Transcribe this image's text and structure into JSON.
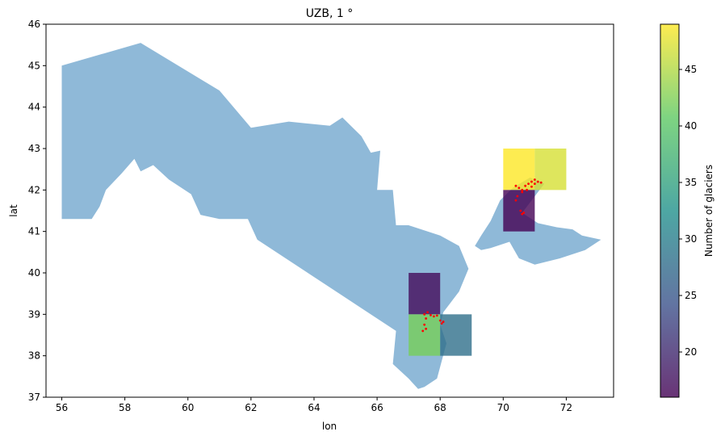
{
  "chart_data": {
    "type": "heatmap",
    "title": "UZB, 1 °",
    "xlabel": "lon",
    "ylabel": "lat",
    "xlim": [
      55.5,
      73.5
    ],
    "ylim": [
      37,
      46
    ],
    "xticks": [
      56,
      58,
      60,
      62,
      64,
      66,
      68,
      70,
      72
    ],
    "yticks": [
      37,
      38,
      39,
      40,
      41,
      42,
      43,
      44,
      45,
      46
    ],
    "grid": false,
    "country_fill": "#8fb9d8",
    "glacier_color": "#ff0000",
    "cell_opacity": 0.8,
    "colorbar": {
      "label": "Number of glaciers",
      "vmin": 16,
      "vmax": 49,
      "ticks": [
        20,
        25,
        30,
        35,
        40,
        45
      ],
      "colormap": "viridis"
    },
    "cells": [
      {
        "lon": 70,
        "lat": 42,
        "count": 49
      },
      {
        "lon": 71,
        "lat": 42,
        "count": 47
      },
      {
        "lon": 70,
        "lat": 41,
        "count": 16
      },
      {
        "lon": 67,
        "lat": 39,
        "count": 17
      },
      {
        "lon": 67,
        "lat": 38,
        "count": 42
      },
      {
        "lon": 68,
        "lat": 38,
        "count": 28
      }
    ],
    "country_outline": [
      [
        56.0,
        45.0
      ],
      [
        58.5,
        45.55
      ],
      [
        61.0,
        44.4
      ],
      [
        62.0,
        43.5
      ],
      [
        63.2,
        43.65
      ],
      [
        64.5,
        43.55
      ],
      [
        64.9,
        43.75
      ],
      [
        65.5,
        43.3
      ],
      [
        65.8,
        42.9
      ],
      [
        66.1,
        42.95
      ],
      [
        66.0,
        42.0
      ],
      [
        66.5,
        42.0
      ],
      [
        66.6,
        41.15
      ],
      [
        67.0,
        41.15
      ],
      [
        68.0,
        40.9
      ],
      [
        68.6,
        40.65
      ],
      [
        68.9,
        40.1
      ],
      [
        68.6,
        39.55
      ],
      [
        68.1,
        39.05
      ],
      [
        68.0,
        38.75
      ],
      [
        68.2,
        38.3
      ],
      [
        67.9,
        37.45
      ],
      [
        67.5,
        37.25
      ],
      [
        67.3,
        37.2
      ],
      [
        67.0,
        37.45
      ],
      [
        66.5,
        37.8
      ],
      [
        66.6,
        38.6
      ],
      [
        65.0,
        39.4
      ],
      [
        64.2,
        39.8
      ],
      [
        62.2,
        40.8
      ],
      [
        61.9,
        41.3
      ],
      [
        61.0,
        41.3
      ],
      [
        60.4,
        41.4
      ],
      [
        60.1,
        41.9
      ],
      [
        59.4,
        42.25
      ],
      [
        58.9,
        42.6
      ],
      [
        58.5,
        42.45
      ],
      [
        58.3,
        42.75
      ],
      [
        57.9,
        42.4
      ],
      [
        57.4,
        42.0
      ],
      [
        57.2,
        41.6
      ],
      [
        56.95,
        41.3
      ],
      [
        56.0,
        41.3
      ]
    ],
    "ferghana_outline": [
      [
        69.1,
        40.65
      ],
      [
        69.3,
        40.9
      ],
      [
        69.6,
        41.25
      ],
      [
        69.9,
        41.75
      ],
      [
        70.3,
        42.05
      ],
      [
        70.85,
        42.3
      ],
      [
        71.3,
        42.15
      ],
      [
        70.9,
        41.75
      ],
      [
        70.6,
        41.45
      ],
      [
        71.1,
        41.2
      ],
      [
        71.7,
        41.1
      ],
      [
        72.2,
        41.05
      ],
      [
        72.5,
        40.9
      ],
      [
        73.1,
        40.8
      ],
      [
        72.6,
        40.55
      ],
      [
        71.8,
        40.35
      ],
      [
        71.0,
        40.2
      ],
      [
        70.5,
        40.35
      ],
      [
        70.2,
        40.75
      ],
      [
        69.6,
        40.6
      ],
      [
        69.3,
        40.55
      ]
    ],
    "glacier_points": [
      [
        70.4,
        42.1
      ],
      [
        70.5,
        42.05
      ],
      [
        70.6,
        42.0
      ],
      [
        70.7,
        42.1
      ],
      [
        70.8,
        42.15
      ],
      [
        70.9,
        42.2
      ],
      [
        71.0,
        42.25
      ],
      [
        71.1,
        42.2
      ],
      [
        71.2,
        42.18
      ],
      [
        71.0,
        42.15
      ],
      [
        70.9,
        42.08
      ],
      [
        70.75,
        42.0
      ],
      [
        70.6,
        41.95
      ],
      [
        70.45,
        41.85
      ],
      [
        70.4,
        41.75
      ],
      [
        70.55,
        41.5
      ],
      [
        70.6,
        41.42
      ],
      [
        70.65,
        41.45
      ],
      [
        67.5,
        39.0
      ],
      [
        67.6,
        39.05
      ],
      [
        67.7,
        38.98
      ],
      [
        67.8,
        38.95
      ],
      [
        67.9,
        38.97
      ],
      [
        67.55,
        38.9
      ],
      [
        67.5,
        38.75
      ],
      [
        67.55,
        38.65
      ],
      [
        67.45,
        38.6
      ],
      [
        68.0,
        38.85
      ],
      [
        68.1,
        38.82
      ],
      [
        68.05,
        38.78
      ]
    ]
  }
}
